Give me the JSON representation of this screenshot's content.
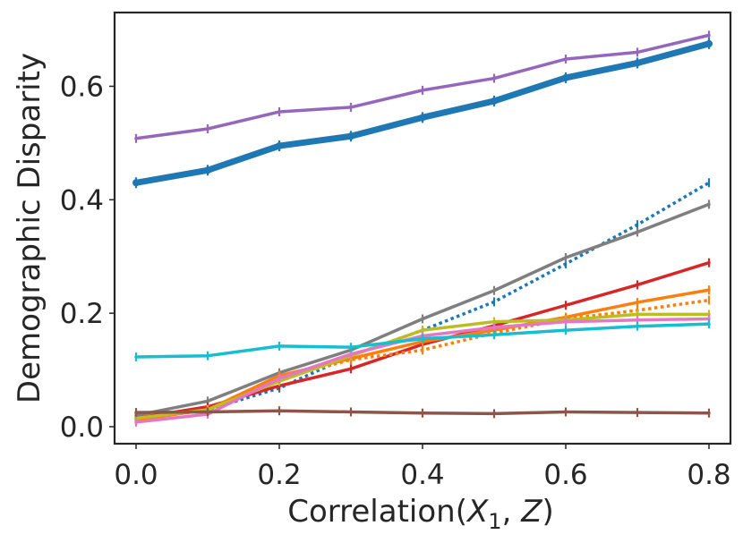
{
  "chart_data": {
    "type": "line",
    "title": "",
    "xlabel": {
      "prefix": "Correlation(",
      "var1": "X",
      "sub1": "1",
      "sep": ", ",
      "var2": "Z",
      "suffix": ")"
    },
    "ylabel": "Demographic Disparity",
    "xlim": [
      -0.03,
      0.83
    ],
    "ylim": [
      -0.03,
      0.73
    ],
    "x": [
      0.0,
      0.1,
      0.2,
      0.3,
      0.4,
      0.5,
      0.6,
      0.7,
      0.8
    ],
    "x_ticks": [
      0.0,
      0.2,
      0.4,
      0.6,
      0.8
    ],
    "x_tick_labels": [
      "0.0",
      "0.2",
      "0.4",
      "0.6",
      "0.8"
    ],
    "y_ticks": [
      0.0,
      0.2,
      0.4,
      0.6
    ],
    "y_tick_labels": [
      "0.0",
      "0.2",
      "0.4",
      "0.6"
    ],
    "grid": false,
    "series": [
      {
        "name": "purple",
        "color": "#9467bd",
        "width": "normal",
        "dash": "solid",
        "values": [
          0.508,
          0.525,
          0.555,
          0.563,
          0.593,
          0.614,
          0.648,
          0.66,
          0.69
        ]
      },
      {
        "name": "blue-bold",
        "color": "#1f77b4",
        "width": "bold",
        "dash": "solid",
        "values": [
          0.43,
          0.452,
          0.495,
          0.512,
          0.545,
          0.574,
          0.615,
          0.641,
          0.675
        ]
      },
      {
        "name": "blue-dotted",
        "color": "#1f77b4",
        "width": "normal",
        "dash": "dotted",
        "values": [
          0.012,
          0.03,
          0.068,
          0.125,
          0.17,
          0.22,
          0.287,
          0.356,
          0.43
        ]
      },
      {
        "name": "gray",
        "color": "#7f7f7f",
        "width": "normal",
        "dash": "solid",
        "values": [
          0.02,
          0.045,
          0.095,
          0.135,
          0.19,
          0.24,
          0.298,
          0.343,
          0.392
        ]
      },
      {
        "name": "red",
        "color": "#d62728",
        "width": "normal",
        "dash": "solid",
        "values": [
          0.015,
          0.035,
          0.072,
          0.102,
          0.145,
          0.178,
          0.214,
          0.25,
          0.289
        ]
      },
      {
        "name": "orange",
        "color": "#ff7f0e",
        "width": "normal",
        "dash": "solid",
        "values": [
          0.012,
          0.03,
          0.09,
          0.12,
          0.15,
          0.17,
          0.193,
          0.219,
          0.241
        ]
      },
      {
        "name": "orange-dotted",
        "color": "#ff7f0e",
        "width": "normal",
        "dash": "dotted",
        "values": [
          0.012,
          0.03,
          0.085,
          0.118,
          0.135,
          0.165,
          0.19,
          0.205,
          0.223
        ]
      },
      {
        "name": "olive",
        "color": "#bcbd22",
        "width": "normal",
        "dash": "solid",
        "values": [
          0.015,
          0.03,
          0.08,
          0.125,
          0.17,
          0.185,
          0.188,
          0.198,
          0.198
        ]
      },
      {
        "name": "pink",
        "color": "#e377c2",
        "width": "normal",
        "dash": "solid",
        "values": [
          0.008,
          0.022,
          0.085,
          0.128,
          0.16,
          0.175,
          0.185,
          0.188,
          0.19
        ]
      },
      {
        "name": "cyan",
        "color": "#17becf",
        "width": "normal",
        "dash": "solid",
        "values": [
          0.123,
          0.125,
          0.142,
          0.14,
          0.155,
          0.162,
          0.17,
          0.177,
          0.181
        ]
      },
      {
        "name": "brown",
        "color": "#8c564b",
        "width": "normal",
        "dash": "solid",
        "values": [
          0.025,
          0.026,
          0.028,
          0.026,
          0.024,
          0.023,
          0.026,
          0.025,
          0.024
        ]
      }
    ]
  }
}
